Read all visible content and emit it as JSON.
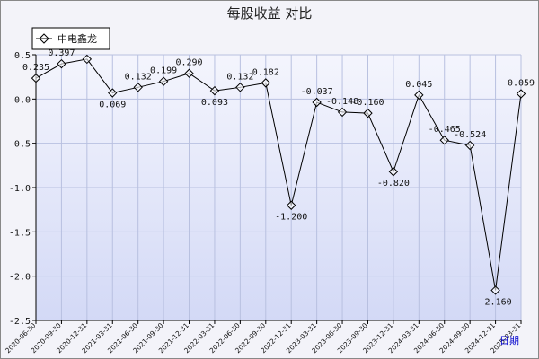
{
  "chart_data": {
    "type": "line",
    "title": "每股收益  对比",
    "xlabel": "",
    "ylabel": "",
    "x_unit_label": "日期",
    "ylim": [
      -2.5,
      0.5
    ],
    "yticks": [
      "0.5",
      "0.0",
      "-0.5",
      "-1.0",
      "-1.5",
      "-2.0",
      "-2.5"
    ],
    "yticks_values": [
      0.5,
      0.0,
      -0.5,
      -1.0,
      -1.5,
      -2.0,
      -2.5
    ],
    "grid": true,
    "legend": "top-left",
    "categories": [
      "2020-06-30",
      "2020-09-30",
      "2020-12-31",
      "2021-03-31",
      "2021-06-30",
      "2021-09-30",
      "2021-12-31",
      "2022-03-31",
      "2022-06-30",
      "2022-09-30",
      "2022-12-31",
      "2023-03-31",
      "2023-06-30",
      "2023-09-30",
      "2023-12-31",
      "2024-03-31",
      "2024-06-30",
      "2024-09-30",
      "2024-12-31",
      "2025-03-31"
    ],
    "series": [
      {
        "name": "中电鑫龙",
        "color": "#000000",
        "values": [
          0.235,
          0.397,
          0.45,
          0.069,
          0.132,
          0.199,
          0.29,
          0.093,
          0.132,
          0.182,
          -1.2,
          -0.037,
          -0.148,
          -0.16,
          -0.82,
          0.045,
          -0.465,
          -0.524,
          -2.16,
          0.059
        ],
        "data_labels": [
          "0.235",
          "0.397",
          "",
          "0.069",
          "0.132",
          "0.199",
          "0.290",
          "0.093",
          "0.132",
          "0.182",
          "-1.200",
          "-0.037",
          "-0.148",
          "-0.160",
          "-0.820",
          "0.045",
          "-0.465",
          "-0.524",
          "-2.160",
          "0.059"
        ]
      }
    ],
    "colors": {
      "plot_bg_top": "#f4f5fd",
      "plot_bg_bottom": "#d3d9f6",
      "grid": "#b8c0e0"
    }
  }
}
